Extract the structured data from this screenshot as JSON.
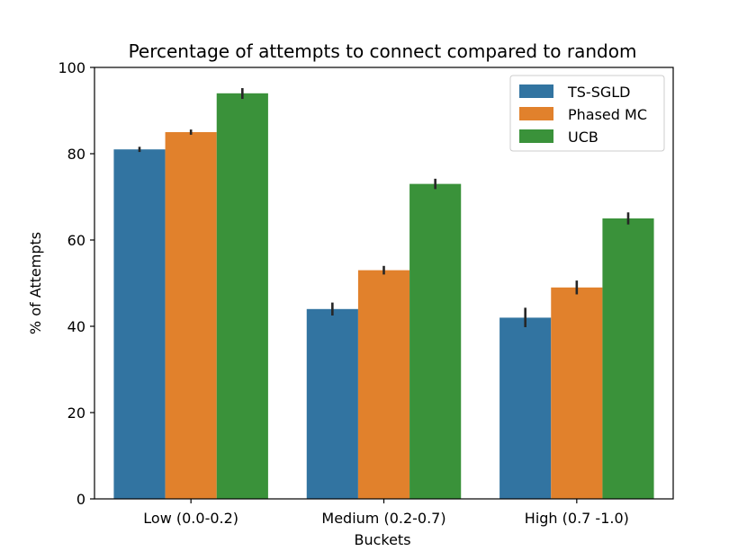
{
  "chart_data": {
    "type": "bar",
    "title": "Percentage of attempts to connect compared to random",
    "xlabel": "Buckets",
    "ylabel": "% of Attempts",
    "categories": [
      "Low (0.0-0.2)",
      "Medium (0.2-0.7)",
      "High (0.7 -1.0)"
    ],
    "ylim": [
      0,
      100
    ],
    "yticks": [
      0,
      20,
      40,
      60,
      80,
      100
    ],
    "grid": false,
    "legend_position": "top-right",
    "series": [
      {
        "name": "TS-SGLD",
        "color": "#3274a1",
        "values": [
          81,
          44,
          42
        ],
        "error": [
          [
            80.4,
            81.6
          ],
          [
            42.5,
            45.5
          ],
          [
            39.8,
            44.3
          ]
        ]
      },
      {
        "name": "Phased MC",
        "color": "#e1812c",
        "values": [
          85,
          53,
          49
        ],
        "error": [
          [
            84.4,
            85.6
          ],
          [
            52.0,
            54.0
          ],
          [
            47.4,
            50.6
          ]
        ]
      },
      {
        "name": "UCB",
        "color": "#3a923a",
        "values": [
          94,
          73,
          65
        ],
        "error": [
          [
            92.7,
            95.2
          ],
          [
            71.8,
            74.2
          ],
          [
            63.6,
            66.4
          ]
        ]
      }
    ]
  }
}
